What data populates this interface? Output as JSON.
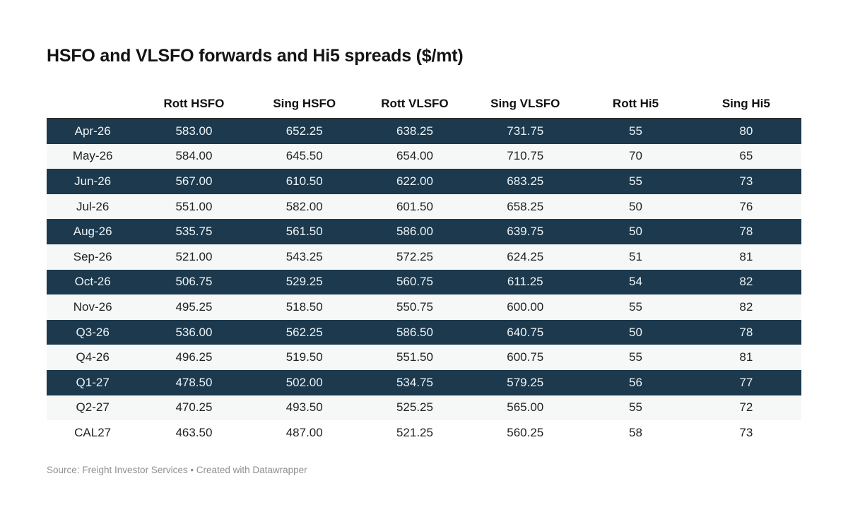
{
  "chart_data": {
    "type": "table",
    "title": "HSFO and VLSFO forwards and Hi5 spreads ($/mt)",
    "columns": [
      "",
      "Rott HSFO",
      "Sing HSFO",
      "Rott VLSFO",
      "Sing VLSFO",
      "Rott Hi5",
      "Sing Hi5"
    ],
    "rows": [
      {
        "label": "Apr-26",
        "values": [
          "583.00",
          "652.25",
          "638.25",
          "731.75",
          "55",
          "80"
        ],
        "highlight": true
      },
      {
        "label": "May-26",
        "values": [
          "584.00",
          "645.50",
          "654.00",
          "710.75",
          "70",
          "65"
        ],
        "highlight": false
      },
      {
        "label": "Jun-26",
        "values": [
          "567.00",
          "610.50",
          "622.00",
          "683.25",
          "55",
          "73"
        ],
        "highlight": true
      },
      {
        "label": "Jul-26",
        "values": [
          "551.00",
          "582.00",
          "601.50",
          "658.25",
          "50",
          "76"
        ],
        "highlight": false
      },
      {
        "label": "Aug-26",
        "values": [
          "535.75",
          "561.50",
          "586.00",
          "639.75",
          "50",
          "78"
        ],
        "highlight": true
      },
      {
        "label": "Sep-26",
        "values": [
          "521.00",
          "543.25",
          "572.25",
          "624.25",
          "51",
          "81"
        ],
        "highlight": false
      },
      {
        "label": "Oct-26",
        "values": [
          "506.75",
          "529.25",
          "560.75",
          "611.25",
          "54",
          "82"
        ],
        "highlight": true
      },
      {
        "label": "Nov-26",
        "values": [
          "495.25",
          "518.50",
          "550.75",
          "600.00",
          "55",
          "82"
        ],
        "highlight": false
      },
      {
        "label": "Q3-26",
        "values": [
          "536.00",
          "562.25",
          "586.50",
          "640.75",
          "50",
          "78"
        ],
        "highlight": true
      },
      {
        "label": "Q4-26",
        "values": [
          "496.25",
          "519.50",
          "551.50",
          "600.75",
          "55",
          "81"
        ],
        "highlight": false
      },
      {
        "label": "Q1-27",
        "values": [
          "478.50",
          "502.00",
          "534.75",
          "579.25",
          "56",
          "77"
        ],
        "highlight": true
      },
      {
        "label": "Q2-27",
        "values": [
          "470.25",
          "493.50",
          "525.25",
          "565.00",
          "55",
          "72"
        ],
        "highlight": false
      },
      {
        "label": "CAL27",
        "values": [
          "463.50",
          "487.00",
          "521.25",
          "560.25",
          "58",
          "73"
        ],
        "highlight": false
      }
    ],
    "layout": {
      "legend_position": "none",
      "grid": false,
      "striped_rows": true
    }
  },
  "colors": {
    "highlight_row_bg": "#1c394d",
    "stripe_row_bg": "#f6f7f7",
    "plain_row_bg": "#ffffff",
    "highlight_row_text": "#eef3f7",
    "body_text": "#222222",
    "header_text": "#111111",
    "title_text": "#141414",
    "source_text": "#8f8f8f",
    "top_border": "#2e2e2e"
  },
  "footer": {
    "source_text": "Source: Freight Investor Services • Created with Datawrapper"
  }
}
